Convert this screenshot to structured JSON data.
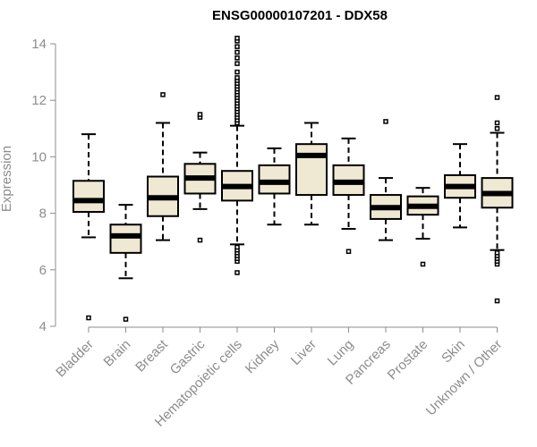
{
  "chart_data": {
    "type": "boxplot",
    "title": "ENSG00000107201 - DDX58",
    "xlabel": "",
    "ylabel": "Expression",
    "ylim": [
      4,
      14.2
    ],
    "yticks": [
      4,
      6,
      8,
      10,
      12,
      14
    ],
    "grid": false,
    "colors": {
      "box_fill": "#efe8d2",
      "box_stroke": "#000000",
      "axis": "#8c8c8c"
    },
    "categories": [
      "Bladder",
      "Brain",
      "Breast",
      "Gastric",
      "Hematopoietic cells",
      "Kidney",
      "Liver",
      "Lung",
      "Pancreas",
      "Prostate",
      "Skin",
      "Unknown / Other"
    ],
    "series": [
      {
        "category": "Bladder",
        "whisker_low": 7.15,
        "q1": 8.05,
        "median": 8.45,
        "q3": 9.15,
        "whisker_high": 10.8,
        "outliers": [
          4.3
        ]
      },
      {
        "category": "Brain",
        "whisker_low": 5.7,
        "q1": 6.6,
        "median": 7.2,
        "q3": 7.6,
        "whisker_high": 8.3,
        "outliers": [
          4.25
        ]
      },
      {
        "category": "Breast",
        "whisker_low": 7.05,
        "q1": 7.9,
        "median": 8.55,
        "q3": 9.3,
        "whisker_high": 11.2,
        "outliers": [
          12.2
        ]
      },
      {
        "category": "Gastric",
        "whisker_low": 8.15,
        "q1": 8.7,
        "median": 9.25,
        "q3": 9.75,
        "whisker_high": 10.15,
        "outliers": [
          11.4,
          11.5,
          7.05
        ]
      },
      {
        "category": "Hematopoietic cells",
        "whisker_low": 6.9,
        "q1": 8.45,
        "median": 8.95,
        "q3": 9.5,
        "whisker_high": 11.1,
        "outliers": [
          5.9,
          6.3,
          6.4,
          6.5,
          6.6,
          6.7,
          6.8,
          11.2,
          11.3,
          11.4,
          11.5,
          11.6,
          11.7,
          11.8,
          11.9,
          12.0,
          12.1,
          12.2,
          12.3,
          12.4,
          12.5,
          12.6,
          12.7,
          12.8,
          13.0,
          13.3,
          13.5,
          13.7,
          13.9,
          14.1,
          14.2
        ]
      },
      {
        "category": "Kidney",
        "whisker_low": 7.6,
        "q1": 8.7,
        "median": 9.1,
        "q3": 9.7,
        "whisker_high": 10.3,
        "outliers": []
      },
      {
        "category": "Liver",
        "whisker_low": 7.6,
        "q1": 8.65,
        "median": 10.05,
        "q3": 10.45,
        "whisker_high": 11.2,
        "outliers": []
      },
      {
        "category": "Lung",
        "whisker_low": 7.45,
        "q1": 8.65,
        "median": 9.1,
        "q3": 9.7,
        "whisker_high": 10.65,
        "outliers": [
          6.65
        ]
      },
      {
        "category": "Pancreas",
        "whisker_low": 7.05,
        "q1": 7.8,
        "median": 8.2,
        "q3": 8.65,
        "whisker_high": 9.25,
        "outliers": [
          11.25
        ]
      },
      {
        "category": "Prostate",
        "whisker_low": 7.1,
        "q1": 7.95,
        "median": 8.25,
        "q3": 8.6,
        "whisker_high": 8.9,
        "outliers": [
          6.2
        ]
      },
      {
        "category": "Skin",
        "whisker_low": 7.5,
        "q1": 8.55,
        "median": 8.95,
        "q3": 9.35,
        "whisker_high": 10.45,
        "outliers": []
      },
      {
        "category": "Unknown / Other",
        "whisker_low": 6.7,
        "q1": 8.2,
        "median": 8.7,
        "q3": 9.25,
        "whisker_high": 10.85,
        "outliers": [
          4.9,
          6.2,
          6.3,
          6.4,
          6.5,
          6.6,
          11.0,
          11.2,
          12.1
        ]
      }
    ]
  }
}
